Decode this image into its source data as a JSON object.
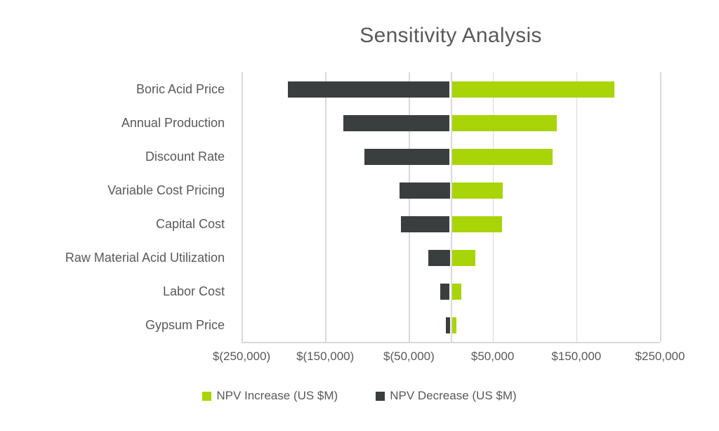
{
  "chart_data": {
    "type": "bar",
    "orientation": "horizontal-tornado",
    "title": "Sensitivity Analysis",
    "categories": [
      "Boric Acid Price",
      "Annual Production",
      "Discount Rate",
      "Variable Cost Pricing",
      "Capital Cost",
      "Raw Material Acid Utilization",
      "Labor Cost",
      "Gypsum Price"
    ],
    "series": [
      {
        "name": "NPV Increase (US $M)",
        "color": "#A8D408",
        "values": [
          194000,
          125000,
          120000,
          61000,
          60000,
          28000,
          11000,
          5000
        ]
      },
      {
        "name": "NPV Decrease (US $M)",
        "color": "#3B3E3E",
        "values": [
          -193000,
          -127000,
          -102000,
          -60000,
          -58000,
          -26000,
          -11000,
          -5000
        ]
      }
    ],
    "x_ticks": [
      {
        "value": -250000,
        "label": "$(250,000)"
      },
      {
        "value": -150000,
        "label": "$(150,000)"
      },
      {
        "value": -50000,
        "label": "$(50,000)"
      },
      {
        "value": 50000,
        "label": "$50,000"
      },
      {
        "value": 150000,
        "label": "$150,000"
      },
      {
        "value": 250000,
        "label": "$250,000"
      }
    ],
    "xlim": [
      -250000,
      250000
    ],
    "grid": true,
    "legend_position": "bottom"
  },
  "colors": {
    "increase": "#A8D408",
    "decrease": "#3B3E3E",
    "grid": "#D9D9D9",
    "text": "#595959",
    "background": "#FFFFFF"
  },
  "legend": {
    "items": [
      {
        "label": "NPV Increase (US $M)",
        "color": "#A8D408"
      },
      {
        "label": "NPV Decrease (US $M)",
        "color": "#3B3E3E"
      }
    ]
  }
}
